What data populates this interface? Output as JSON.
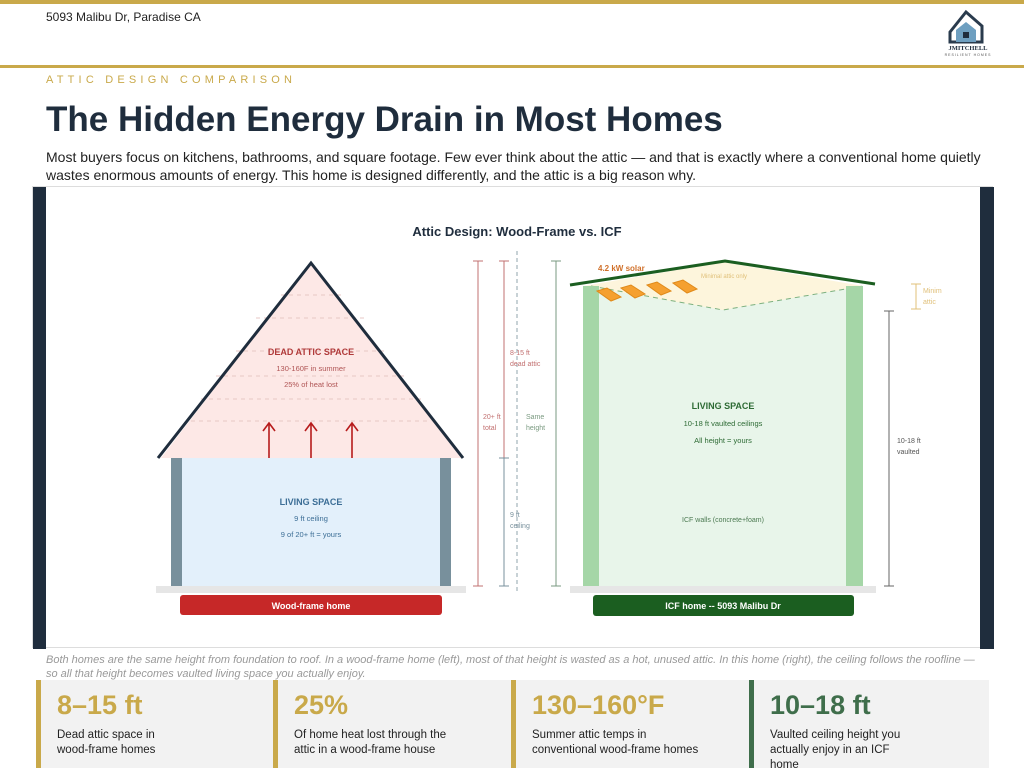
{
  "header": {
    "address": "5093 Malibu Dr, Paradise CA",
    "logo_text": "JMITCHELL",
    "logo_subtext": "RESILIENT HOMES"
  },
  "section": {
    "eyebrow": "ATTIC DESIGN COMPARISON",
    "title": "The Hidden Energy Drain in Most Homes",
    "intro": "Most buyers focus on kitchens, bathrooms, and square footage. Few ever think about the attic — and that is exactly where a conventional home quietly wastes enormous amounts of energy. This home is designed differently, and the attic is a big reason why."
  },
  "diagram": {
    "title": "Attic Design: Wood-Frame vs. ICF",
    "left": {
      "attic_label": "DEAD ATTIC SPACE",
      "attic_line1": "130-160F in summer",
      "attic_line2": "25% of heat lost",
      "living_label": "LIVING SPACE",
      "living_line1": "9 ft ceiling",
      "living_line2": "9 of 20+ ft = yours",
      "home_label": "Wood-frame home"
    },
    "dims": {
      "total_1": "20+ ft",
      "total_2": "total",
      "attic_1": "8-15 ft",
      "attic_2": "dead attic",
      "same_1": "Same",
      "same_2": "height",
      "ceiling_1": "9 ft",
      "ceiling_2": "ceiling",
      "min_1": "Minim",
      "min_2": "attic",
      "vault_1": "10-18 ft",
      "vault_2": "vaulted"
    },
    "right": {
      "solar_label": "4.2 kW solar",
      "attic_label": "Minimal attic only",
      "living_label": "LIVING SPACE",
      "living_line1": "10-18 ft vaulted ceilings",
      "living_line2": "All height = yours",
      "walls_label": "ICF walls (concrete+foam)",
      "home_label": "ICF home -- 5093 Malibu Dr"
    }
  },
  "caption": "Both homes are the same height from foundation to roof. In a wood-frame home (left), most of that height is wasted as a hot, unused attic. In this home (right), the ceiling follows the roofline — so all that height becomes vaulted living space you actually enjoy.",
  "stats": [
    {
      "value": "8–15 ft",
      "desc": "Dead attic space in wood-frame homes"
    },
    {
      "value": "25%",
      "desc": "Of home heat lost through the attic in a wood-frame house"
    },
    {
      "value": "130–160°F",
      "desc": "Summer attic temps in conventional wood-frame homes"
    },
    {
      "value": "10–18 ft",
      "desc": "Vaulted ceiling height you actually enjoy in an ICF home"
    }
  ],
  "colors": {
    "gold": "#c9a94a",
    "green": "#3f6e4b",
    "navy": "#1f2d3d",
    "red": "#c62828",
    "icf_green": "#1b5e20"
  }
}
